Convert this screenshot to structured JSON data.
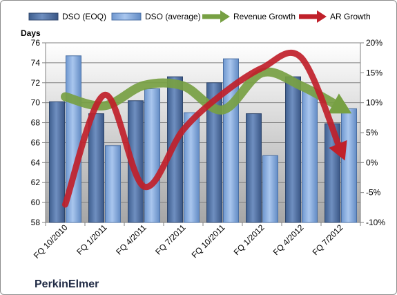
{
  "chart_data": {
    "type": "bar",
    "categories": [
      "FQ 10/2010",
      "FQ 1/2011",
      "FQ 4/2011",
      "FQ 7/2011",
      "FQ 10/2011",
      "FQ 1/2012",
      "FQ 4/2012",
      "FQ 7/2012"
    ],
    "series": [
      {
        "name": "DSO (EOQ)",
        "axis": "left",
        "kind": "bar",
        "color": "#4f6fa0",
        "values": [
          70.1,
          68.9,
          70.2,
          72.6,
          72.0,
          68.9,
          72.6,
          67.9
        ]
      },
      {
        "name": "DSO (average)",
        "axis": "left",
        "kind": "bar",
        "color": "#7ea6dc",
        "values": [
          74.7,
          65.7,
          71.4,
          69.0,
          74.4,
          64.7,
          71.2,
          69.4
        ]
      },
      {
        "name": "Revenue Growth",
        "axis": "right",
        "kind": "arrow-line",
        "color": "#77a043",
        "values": [
          11.0,
          9.5,
          12.9,
          12.8,
          8.8,
          15.0,
          12.8,
          9.2
        ]
      },
      {
        "name": "AR Growth",
        "axis": "right",
        "kind": "arrow-line",
        "color": "#c0202a",
        "values": [
          -7.0,
          11.3,
          -4.0,
          5.5,
          11.5,
          15.8,
          17.5,
          2.0
        ]
      }
    ],
    "y_left": {
      "label": "Days",
      "min": 58,
      "max": 76,
      "step": 2,
      "ticks": [
        "58",
        "60",
        "62",
        "64",
        "66",
        "68",
        "70",
        "72",
        "74",
        "76"
      ]
    },
    "y_right": {
      "label": "",
      "min": -10,
      "max": 20,
      "step": 5,
      "ticks": [
        "-10%",
        "-5%",
        "0%",
        "5%",
        "10%",
        "15%",
        "20%"
      ]
    },
    "grid": true,
    "legend": "top",
    "title": "",
    "xlabel": ""
  },
  "brand": {
    "name": "PerkinElmer"
  },
  "colors": {
    "plot_bg_top": "#ffffff",
    "plot_bg_bottom": "#a6a6a6",
    "bar_eoq": "#4f6fa0",
    "bar_avg": "#7ea6dc",
    "revenue": "#77a043",
    "ar": "#c0202a"
  }
}
